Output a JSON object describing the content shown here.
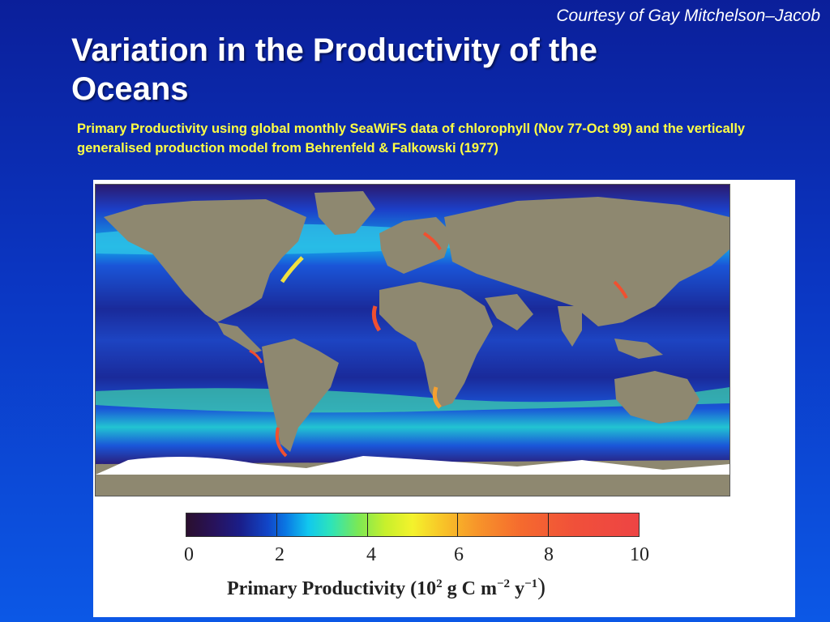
{
  "slide": {
    "credit": "Courtesy of Gay Mitchelson–Jacob",
    "title": "Variation in the Productivity of the Oceans",
    "subtitle": "Primary Productivity using global monthly SeaWiFS data of chlorophyll (Nov 77-Oct 99) and the vertically generalised production model from Behrenfeld & Falkowski (1977)"
  },
  "colors": {
    "background_top": "#0b1f9a",
    "background_bottom": "#0c58e6",
    "title": "#ffffff",
    "subtitle": "#ffff44",
    "land": "#8e8870",
    "ocean_low": "#1a2a9a",
    "ice": "#ffffff"
  },
  "colorbar": {
    "ticks": [
      "0",
      "2",
      "4",
      "6",
      "8",
      "10"
    ],
    "caption_prefix": "Primary Productivity (10",
    "caption_sup1": "2",
    "caption_mid": " g C m",
    "caption_sup2": "−2",
    "caption_mid2": " y",
    "caption_sup3": "−1",
    "caption_suffix": ")"
  }
}
